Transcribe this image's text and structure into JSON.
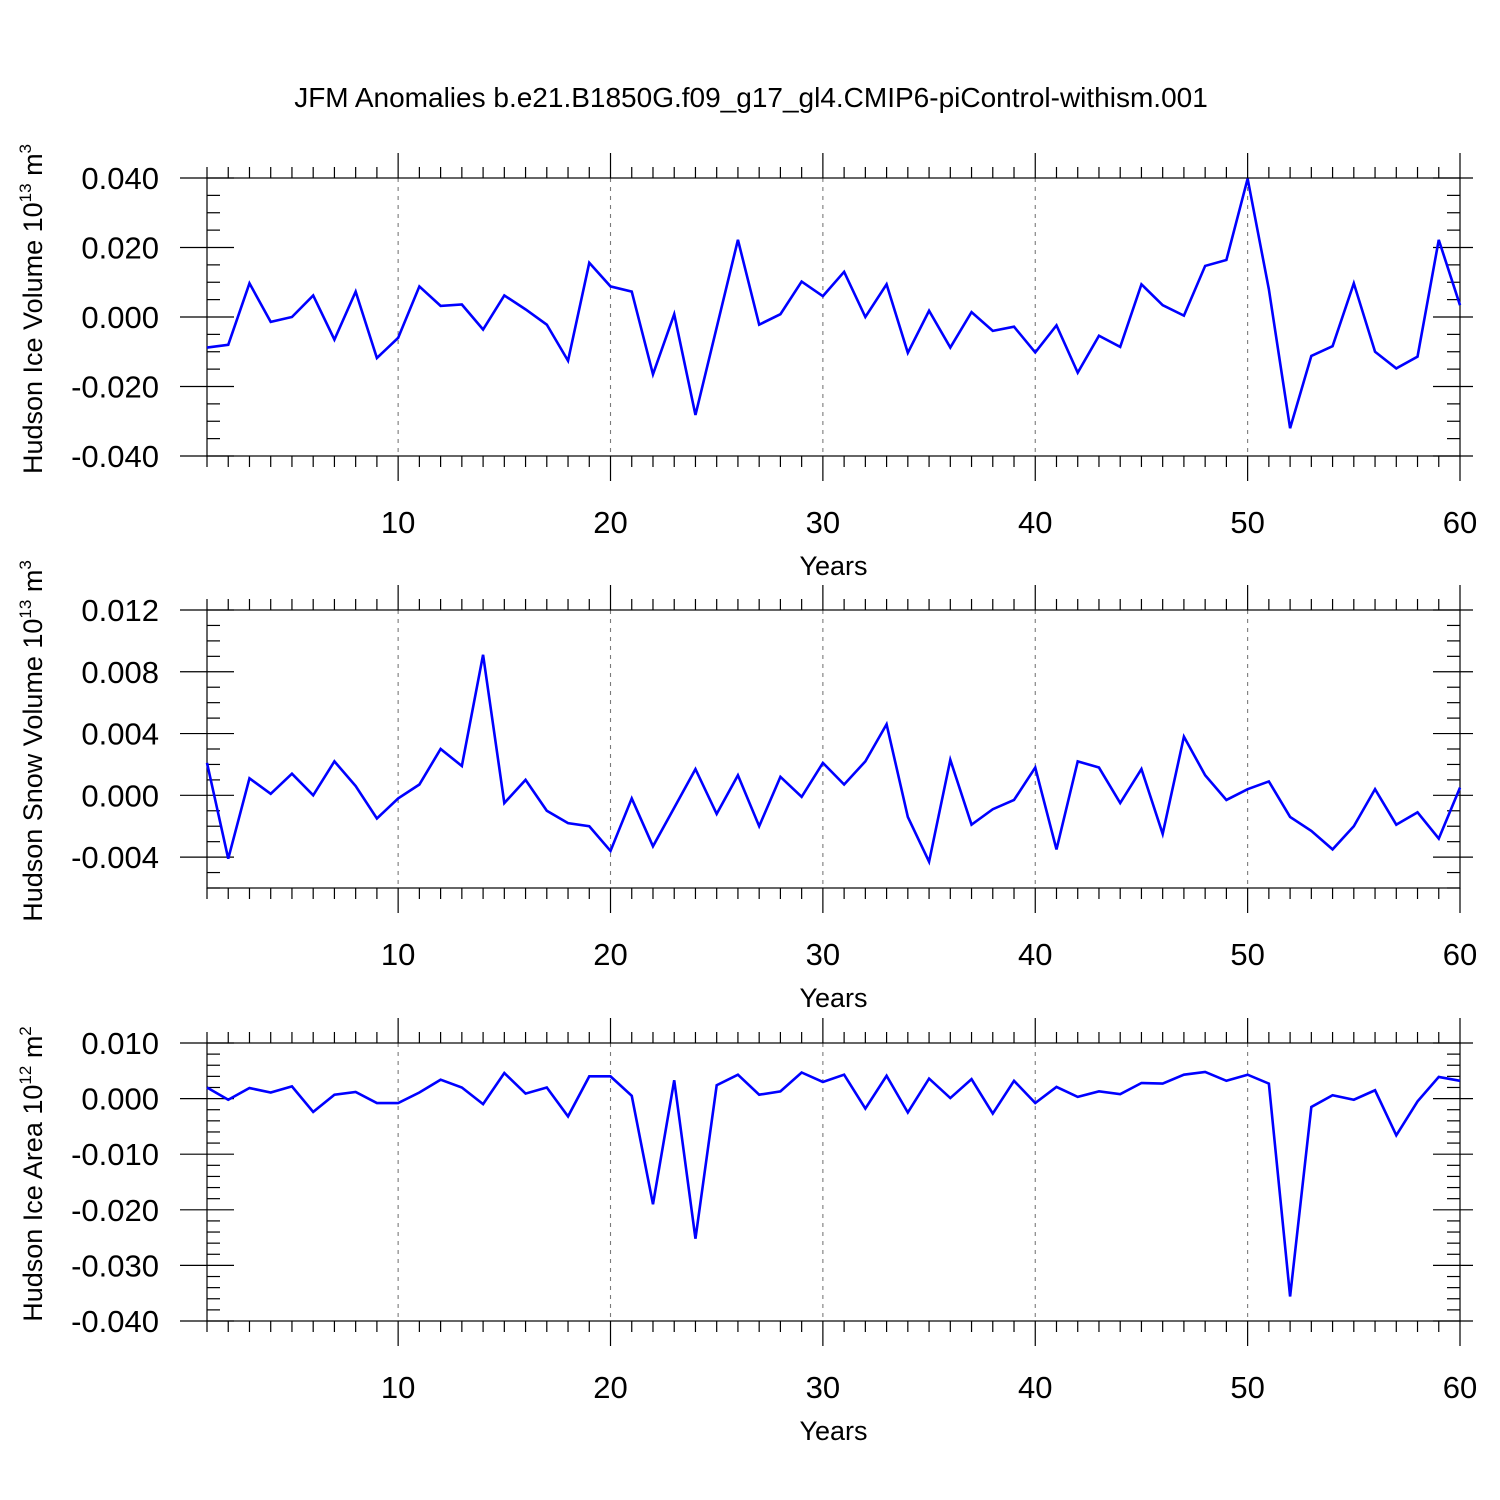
{
  "title": "JFM Anomalies b.e21.B1850G.f09_g17_gl4.CMIP6-piControl-withism.001",
  "chart_data": [
    {
      "type": "line",
      "name": "ice-volume",
      "color": "#0000ff",
      "xlabel": "Years",
      "ylabel_main": "Hudson Ice Volume 10",
      "ylabel_exp": "13",
      "ylabel_unit": " m",
      "ylabel_unit_exp": "3",
      "xlim": [
        1,
        60
      ],
      "ylim": [
        -0.04,
        0.04
      ],
      "xticks": [
        10,
        20,
        30,
        40,
        50,
        60
      ],
      "xtick_labels": [
        "10",
        "20",
        "30",
        "40",
        "50",
        "60"
      ],
      "yticks": [
        -0.04,
        -0.02,
        0.0,
        0.02,
        0.04
      ],
      "ytick_labels": [
        "-0.040",
        "-0.020",
        "0.000",
        "0.020",
        "0.040"
      ],
      "yminor_step": 0.005,
      "grid_x": true,
      "x": [
        1,
        2,
        3,
        4,
        5,
        6,
        7,
        8,
        9,
        10,
        11,
        12,
        13,
        14,
        15,
        16,
        17,
        18,
        19,
        20,
        21,
        22,
        23,
        24,
        25,
        26,
        27,
        28,
        29,
        30,
        31,
        32,
        33,
        34,
        35,
        36,
        37,
        38,
        39,
        40,
        41,
        42,
        43,
        44,
        45,
        46,
        47,
        48,
        49,
        50,
        51,
        52,
        53,
        54,
        55,
        56,
        57,
        58,
        59,
        60
      ],
      "values": [
        -0.0088,
        -0.008,
        0.0097,
        -0.0014,
        0.0,
        0.0062,
        -0.0065,
        0.0073,
        -0.0118,
        -0.006,
        0.0088,
        0.0032,
        0.0036,
        -0.0036,
        0.0062,
        0.0022,
        -0.0022,
        -0.0126,
        0.0156,
        0.0088,
        0.0073,
        -0.0165,
        0.0008,
        -0.0282,
        -0.003,
        0.0222,
        -0.0022,
        0.0008,
        0.0102,
        0.006,
        0.013,
        0.0,
        0.0094,
        -0.0103,
        0.0018,
        -0.0088,
        0.0014,
        -0.004,
        -0.0028,
        -0.0102,
        -0.0024,
        -0.016,
        -0.0054,
        -0.0086,
        0.0094,
        0.0034,
        0.0004,
        0.0147,
        0.0164,
        0.0398,
        0.008,
        -0.032,
        -0.0112,
        -0.0084,
        0.0097,
        -0.01,
        -0.0148,
        -0.0114,
        0.0222,
        0.0034
      ]
    },
    {
      "type": "line",
      "name": "snow-volume",
      "color": "#0000ff",
      "xlabel": "Years",
      "ylabel_main": "Hudson Snow Volume 10",
      "ylabel_exp": "13",
      "ylabel_unit": " m",
      "ylabel_unit_exp": "3",
      "xlim": [
        1,
        60
      ],
      "ylim": [
        -0.006,
        0.012
      ],
      "xticks": [
        10,
        20,
        30,
        40,
        50,
        60
      ],
      "xtick_labels": [
        "10",
        "20",
        "30",
        "40",
        "50",
        "60"
      ],
      "yticks": [
        -0.004,
        0.0,
        0.004,
        0.008,
        0.012
      ],
      "ytick_labels": [
        "-0.004",
        "0.000",
        "0.004",
        "0.008",
        "0.012"
      ],
      "yminor_step": 0.001,
      "grid_x": true,
      "x": [
        1,
        2,
        3,
        4,
        5,
        6,
        7,
        8,
        9,
        10,
        11,
        12,
        13,
        14,
        15,
        16,
        17,
        18,
        19,
        20,
        21,
        22,
        23,
        24,
        25,
        26,
        27,
        28,
        29,
        30,
        31,
        32,
        33,
        34,
        35,
        36,
        37,
        38,
        39,
        40,
        41,
        42,
        43,
        44,
        45,
        46,
        47,
        48,
        49,
        50,
        51,
        52,
        53,
        54,
        55,
        56,
        57,
        58,
        59,
        60
      ],
      "values": [
        0.0021,
        -0.0041,
        0.0011,
        0.0001,
        0.0014,
        0.0,
        0.0022,
        0.0006,
        -0.0015,
        -0.0002,
        0.0007,
        0.003,
        0.0019,
        0.0091,
        -0.0005,
        0.001,
        -0.001,
        -0.0018,
        -0.002,
        -0.0036,
        -0.0002,
        -0.0033,
        -0.0008,
        0.0017,
        -0.0012,
        0.0013,
        -0.002,
        0.0012,
        -0.0001,
        0.0021,
        0.0007,
        0.0022,
        0.0046,
        -0.0014,
        -0.0043,
        0.0023,
        -0.0019,
        -0.0009,
        -0.0003,
        0.0018,
        -0.0035,
        0.0022,
        0.0018,
        -0.0005,
        0.0017,
        -0.0025,
        0.0038,
        0.0013,
        -0.0003,
        0.0004,
        0.0009,
        -0.0014,
        -0.0023,
        -0.0035,
        -0.002,
        0.0004,
        -0.0019,
        -0.0011,
        -0.0028,
        0.0005
      ]
    },
    {
      "type": "line",
      "name": "ice-area",
      "color": "#0000ff",
      "xlabel": "Years",
      "ylabel_main": "Hudson Ice Area 10",
      "ylabel_exp": "12",
      "ylabel_unit": " m",
      "ylabel_unit_exp": "2",
      "xlim": [
        1,
        60
      ],
      "ylim": [
        -0.04,
        0.01
      ],
      "xticks": [
        10,
        20,
        30,
        40,
        50,
        60
      ],
      "xtick_labels": [
        "10",
        "20",
        "30",
        "40",
        "50",
        "60"
      ],
      "yticks": [
        -0.04,
        -0.03,
        -0.02,
        -0.01,
        0.0,
        0.01
      ],
      "ytick_labels": [
        "-0.040",
        "-0.030",
        "-0.020",
        "-0.010",
        "0.000",
        "0.010"
      ],
      "yminor_step": 0.002,
      "grid_x": true,
      "x": [
        1,
        2,
        3,
        4,
        5,
        6,
        7,
        8,
        9,
        10,
        11,
        12,
        13,
        14,
        15,
        16,
        17,
        18,
        19,
        20,
        21,
        22,
        23,
        24,
        25,
        26,
        27,
        28,
        29,
        30,
        31,
        32,
        33,
        34,
        35,
        36,
        37,
        38,
        39,
        40,
        41,
        42,
        43,
        44,
        45,
        46,
        47,
        48,
        49,
        50,
        51,
        52,
        53,
        54,
        55,
        56,
        57,
        58,
        59,
        60
      ],
      "values": [
        0.002,
        -0.0002,
        0.0019,
        0.0011,
        0.0022,
        -0.0024,
        0.0007,
        0.0012,
        -0.0008,
        -0.0008,
        0.0011,
        0.0034,
        0.002,
        -0.001,
        0.0046,
        0.0009,
        0.002,
        -0.0032,
        0.004,
        0.004,
        0.0005,
        -0.019,
        0.0033,
        -0.0252,
        0.0024,
        0.0043,
        0.0007,
        0.0013,
        0.0047,
        0.003,
        0.0043,
        -0.0018,
        0.0041,
        -0.0025,
        0.0036,
        0.0001,
        0.0035,
        -0.0027,
        0.0032,
        -0.0008,
        0.0021,
        0.0003,
        0.0013,
        0.0008,
        0.0028,
        0.0027,
        0.0043,
        0.0048,
        0.0032,
        0.0043,
        0.0027,
        -0.0356,
        -0.0015,
        0.0006,
        -0.0002,
        0.0015,
        -0.0066,
        -0.0005,
        0.0039,
        0.0032
      ]
    }
  ]
}
